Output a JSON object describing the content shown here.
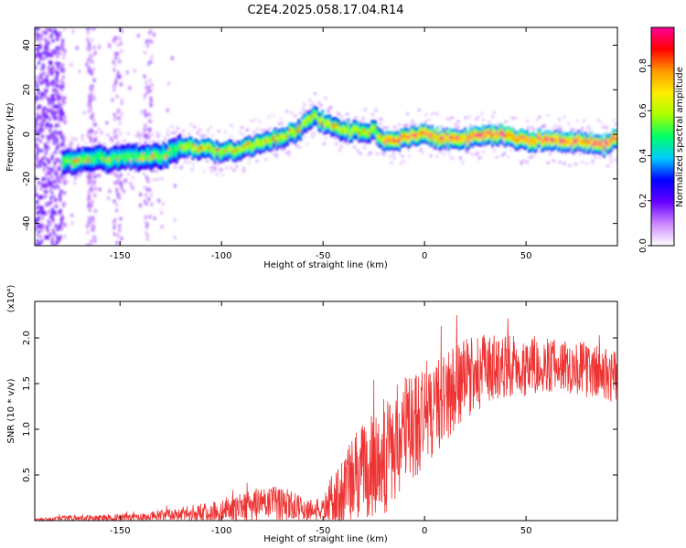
{
  "title": "C2E4.2025.058.17.04.R14",
  "chart_data": [
    {
      "type": "heatmap",
      "name": "spectrogram",
      "xlabel": "Height of straight line (km)",
      "ylabel": "Frequency (Hz)",
      "xlim": [
        -192,
        95
      ],
      "ylim": [
        -50,
        48
      ],
      "xticks": [
        -150,
        -100,
        -50,
        0,
        50
      ],
      "yticks": [
        -40,
        -20,
        0,
        20,
        40
      ],
      "xtick_labels": [
        "-150",
        "-100",
        "-50",
        "0",
        "50"
      ],
      "ytick_labels": [
        "-40",
        "-20",
        "0",
        "20",
        "40"
      ],
      "colorbar": {
        "label": "Normalized spectral amplitude",
        "range": [
          0,
          0.97
        ],
        "ticks": [
          0.0,
          0.2,
          0.4,
          0.6,
          0.8
        ],
        "tick_labels": [
          "0.0",
          "0.2",
          "0.4",
          "0.6",
          "0.8"
        ],
        "colors": [
          "#ffffff",
          "#cc88ff",
          "#6600ff",
          "#0000ff",
          "#00ccff",
          "#00ff66",
          "#aaff00",
          "#ffee00",
          "#ff9900",
          "#ff0000",
          "#ff0099"
        ]
      },
      "ridge_center_freq": {
        "x": [
          -175,
          -160,
          -140,
          -130,
          -120,
          -110,
          -100,
          -90,
          -80,
          -70,
          -62,
          -58,
          -54,
          -50,
          -45,
          -40,
          -35,
          -30,
          -25,
          -20,
          -15,
          -10,
          -5,
          0,
          10,
          20,
          30,
          40,
          50,
          60,
          70,
          80,
          88,
          93
        ],
        "freq": [
          -12,
          -11,
          -10,
          -10,
          -6,
          -6,
          -8,
          -6,
          -3,
          -1,
          2,
          6,
          8,
          6,
          4,
          2,
          2,
          0,
          2,
          -2,
          -3,
          -2,
          0,
          0,
          -2,
          -2,
          0,
          0,
          -3,
          -2,
          -3,
          -3,
          -5,
          -2
        ]
      }
    },
    {
      "type": "line",
      "name": "snr",
      "xlabel": "Height of straight line (km)",
      "ylabel": "SNR (10 * v/v)",
      "y_multiplier_label": "(x10⁴)",
      "xlim": [
        -192,
        95
      ],
      "ylim": [
        0,
        2.4
      ],
      "xticks": [
        -150,
        -100,
        -50,
        0,
        50
      ],
      "yticks": [
        0.5,
        1.0,
        1.5,
        2.0
      ],
      "xtick_labels": [
        "-150",
        "-100",
        "-50",
        "0",
        "50"
      ],
      "ytick_labels": [
        "0.5",
        "1.0",
        "1.5",
        "2.0"
      ],
      "color": "#ee3333",
      "envelope": {
        "x": [
          -192,
          -175,
          -160,
          -140,
          -120,
          -100,
          -90,
          -80,
          -70,
          -60,
          -55,
          -50,
          -45,
          -40,
          -35,
          -30,
          -25,
          -20,
          -15,
          -10,
          -5,
          0,
          5,
          10,
          15,
          20,
          30,
          40,
          50,
          60,
          70,
          80,
          90,
          95
        ],
        "mean": [
          0.01,
          0.02,
          0.03,
          0.04,
          0.07,
          0.1,
          0.15,
          0.18,
          0.18,
          0.13,
          0.12,
          0.12,
          0.25,
          0.35,
          0.45,
          0.55,
          0.6,
          0.7,
          0.8,
          0.95,
          1.05,
          1.15,
          1.25,
          1.35,
          1.45,
          1.55,
          1.65,
          1.7,
          1.7,
          1.7,
          1.7,
          1.65,
          1.6,
          1.55
        ],
        "amp": [
          0.01,
          0.04,
          0.04,
          0.04,
          0.08,
          0.12,
          0.15,
          0.2,
          0.2,
          0.14,
          0.12,
          0.12,
          0.3,
          0.45,
          0.5,
          0.55,
          0.6,
          0.65,
          0.65,
          0.65,
          0.65,
          0.6,
          0.55,
          0.5,
          0.5,
          0.45,
          0.4,
          0.35,
          0.35,
          0.3,
          0.3,
          0.3,
          0.3,
          0.3
        ]
      }
    }
  ]
}
